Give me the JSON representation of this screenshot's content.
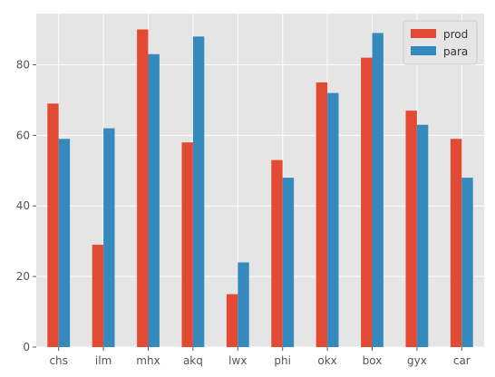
{
  "chart_data": {
    "type": "bar",
    "categories": [
      "chs",
      "ilm",
      "mhx",
      "akq",
      "lwx",
      "phi",
      "okx",
      "box",
      "gyx",
      "car"
    ],
    "series": [
      {
        "name": "prod",
        "color": "#E24A33",
        "values": [
          69,
          29,
          90,
          58,
          15,
          53,
          75,
          82,
          67,
          59
        ]
      },
      {
        "name": "para",
        "color": "#348ABD",
        "values": [
          59,
          62,
          83,
          88,
          24,
          48,
          72,
          89,
          63,
          48
        ]
      }
    ],
    "title": "",
    "xlabel": "",
    "ylabel": "",
    "ylim": [
      0,
      94.5
    ],
    "yticks": [
      0,
      20,
      40,
      60,
      80
    ],
    "grid": true,
    "legend_position": "top-right",
    "plot_background": "#E5E5E5",
    "grid_color": "#FFFFFF"
  }
}
